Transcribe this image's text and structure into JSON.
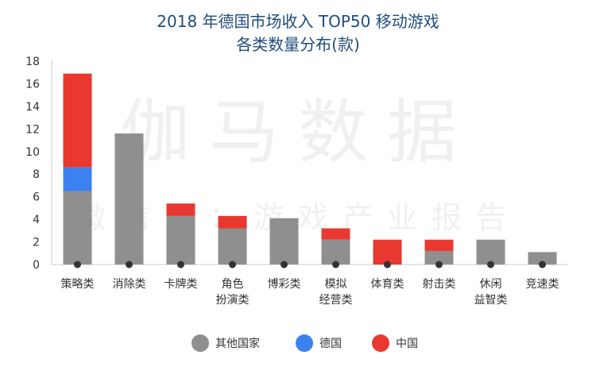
{
  "chart_data": {
    "type": "bar",
    "stacked": true,
    "title_line1": "2018 年德国市场收入 TOP50 移动游戏",
    "title_line2": "各类数量分布(款)",
    "watermark": {
      "line1": "伽马数据",
      "line2": "微信号：游戏产业报告"
    },
    "categories": [
      [
        "策略类"
      ],
      [
        "消除类"
      ],
      [
        "卡牌类"
      ],
      [
        "角色",
        "扮演类"
      ],
      [
        "博彩类"
      ],
      [
        "模拟",
        "经营类"
      ],
      [
        "体育类"
      ],
      [
        "射击类"
      ],
      [
        "休闲",
        "益智类"
      ],
      [
        "竞速类"
      ]
    ],
    "series": [
      {
        "name": "其他国家",
        "color": "#8f8f8f",
        "values": [
          6.5,
          11.6,
          4.3,
          3.2,
          4.1,
          2.2,
          0,
          1.2,
          2.2,
          1.1
        ]
      },
      {
        "name": "德国",
        "color": "#3b82f0",
        "values": [
          2.1,
          0,
          0,
          0,
          0,
          0,
          0,
          0,
          0,
          0
        ]
      },
      {
        "name": "中国",
        "color": "#e8382f",
        "values": [
          8.3,
          0,
          1.1,
          1.1,
          0,
          1.0,
          2.2,
          1.0,
          0,
          0
        ]
      }
    ],
    "yticks": [
      0,
      2,
      4,
      6,
      8,
      10,
      12,
      14,
      16,
      18
    ],
    "ylim": [
      0,
      18
    ],
    "legend_position": "bottom",
    "grid": false
  }
}
